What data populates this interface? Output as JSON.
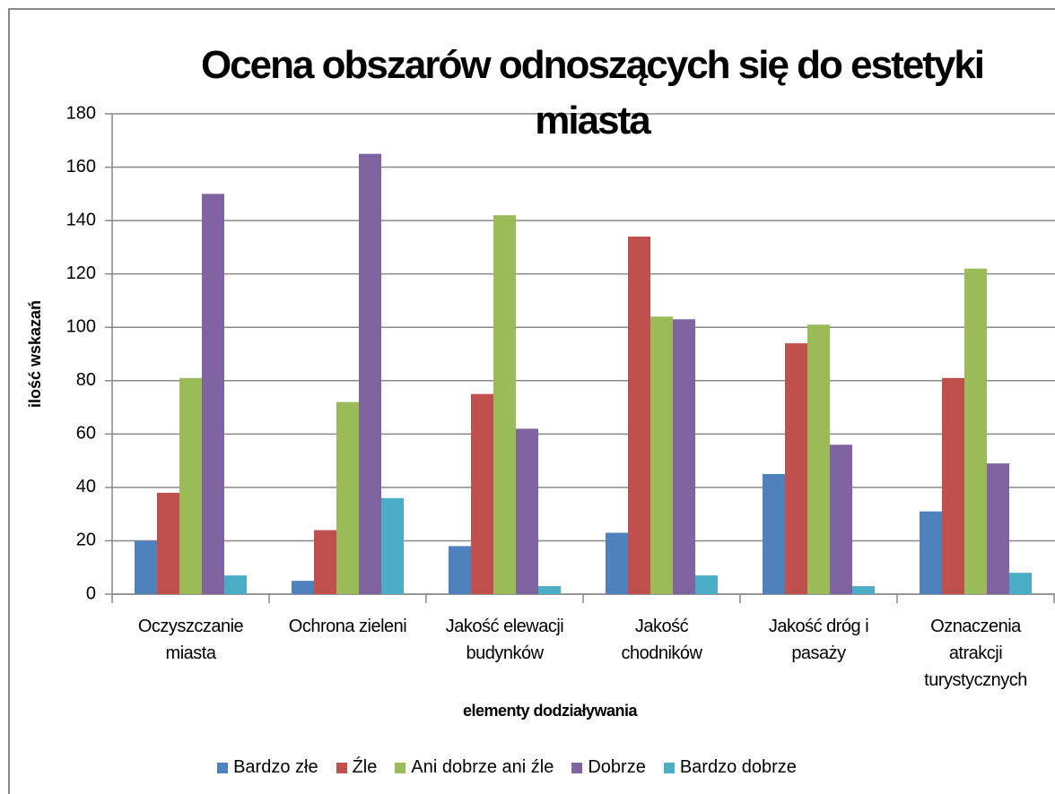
{
  "chart_data": {
    "type": "bar",
    "title": "Ocena obszarów odnoszących się do estetyki miasta",
    "xlabel": "elementy dodziaływania",
    "ylabel": "ilość wskazań",
    "categories": [
      "Oczyszczanie miasta",
      "Ochrona zieleni",
      "Jakość elewacji budynków",
      "Jakość chodników",
      "Jakość dróg i pasaży",
      "Oznaczenia atrakcji turystycznych"
    ],
    "series": [
      {
        "name": "Bardzo złe",
        "color": "#4f81bd",
        "values": [
          20,
          5,
          18,
          23,
          45,
          31
        ]
      },
      {
        "name": "Źle",
        "color": "#c0504d",
        "values": [
          38,
          24,
          75,
          134,
          94,
          81
        ]
      },
      {
        "name": "Ani dobrze ani źle",
        "color": "#9bbb59",
        "values": [
          81,
          72,
          142,
          104,
          101,
          122
        ]
      },
      {
        "name": "Dobrze",
        "color": "#8064a2",
        "values": [
          150,
          165,
          62,
          103,
          56,
          49
        ]
      },
      {
        "name": "Bardzo dobrze",
        "color": "#4bacc6",
        "values": [
          7,
          36,
          3,
          7,
          3,
          8
        ]
      }
    ],
    "ylim": [
      0,
      180
    ],
    "yticks": [
      0,
      20,
      40,
      60,
      80,
      100,
      120,
      140,
      160,
      180
    ],
    "grid": true,
    "legend": "bottom"
  }
}
